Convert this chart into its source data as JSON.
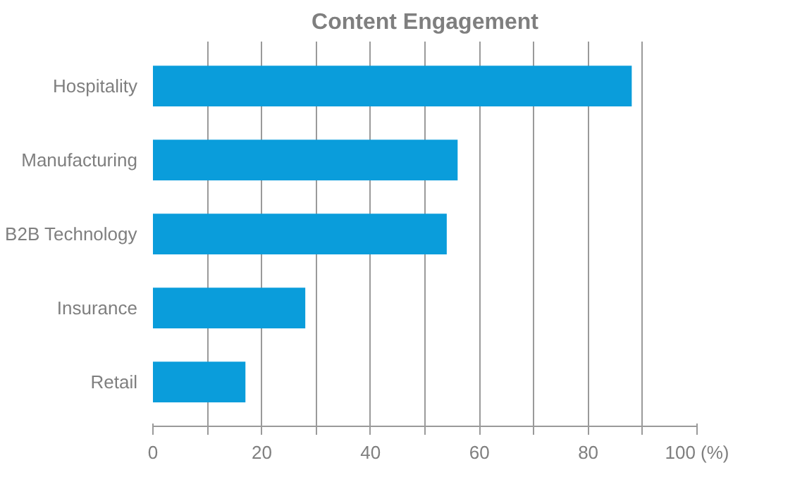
{
  "chart_data": {
    "type": "bar",
    "orientation": "horizontal",
    "title": "Content Engagement",
    "categories": [
      "Hospitality",
      "Manufacturing",
      "B2B Technology",
      "Insurance",
      "Retail"
    ],
    "values": [
      88,
      56,
      54,
      28,
      17
    ],
    "color": "#0a9ddb",
    "xlim": [
      0,
      100
    ],
    "xticks": [
      0,
      {
        "value": 10,
        "label": null
      },
      20,
      {
        "value": 30,
        "label": null
      },
      40,
      {
        "value": 50,
        "label": null
      },
      60,
      {
        "value": 70,
        "label": null
      },
      80,
      {
        "value": 90,
        "label": null
      },
      {
        "value": 100,
        "label": "100 (%)"
      }
    ],
    "grid": "x"
  }
}
